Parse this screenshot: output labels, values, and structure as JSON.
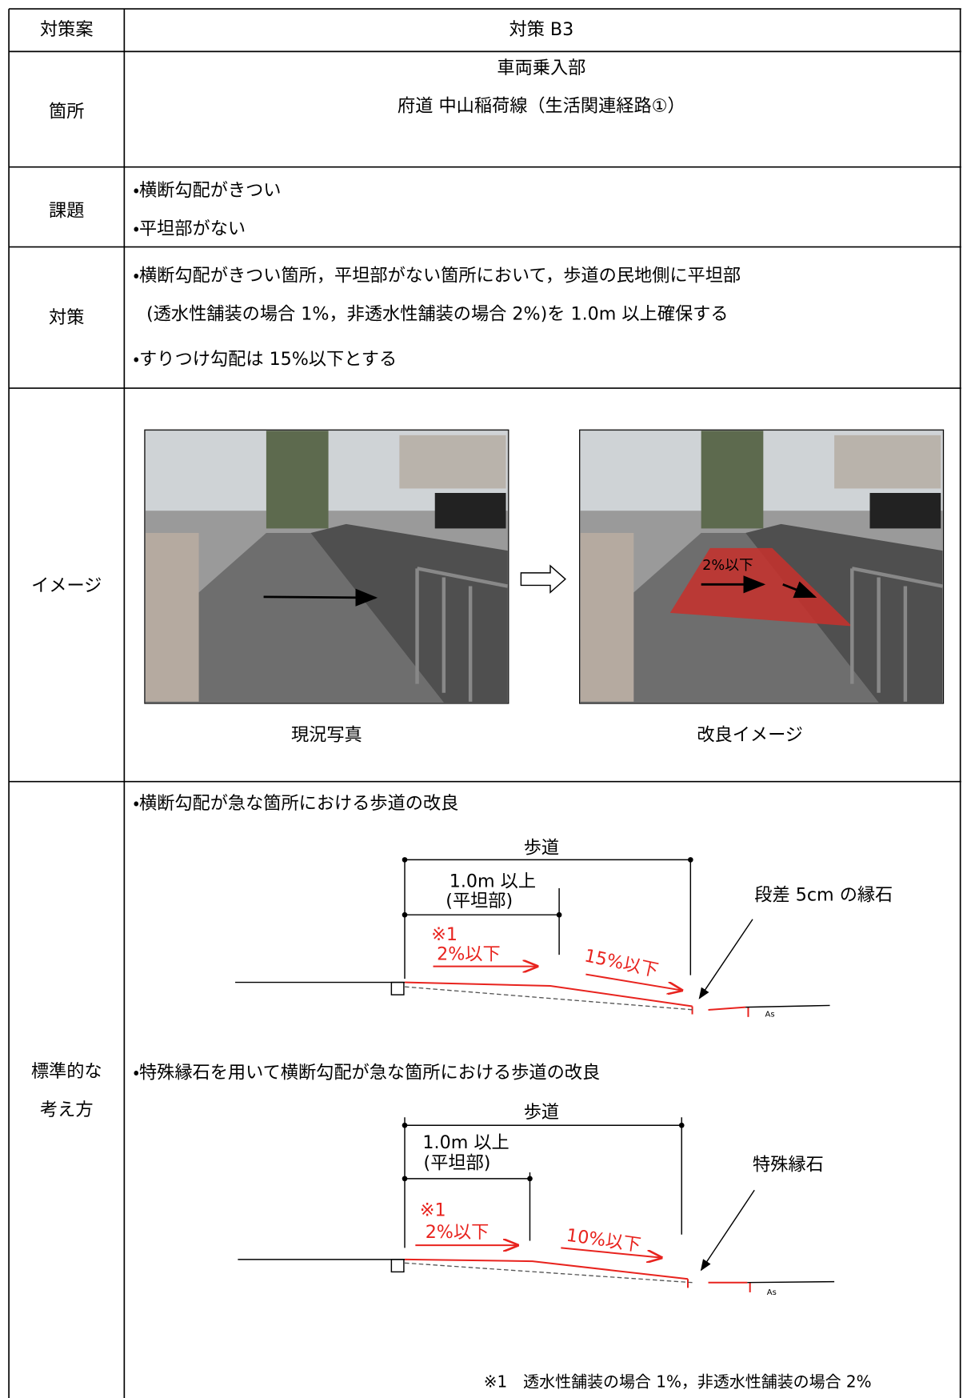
{
  "table": {
    "rows": [
      {
        "label": "対策案",
        "content": [
          "対策 B3"
        ]
      },
      {
        "label": "箇所",
        "content": [
          "車両乗入部",
          "府道 中山稲荷線（生活関連経路①）"
        ]
      },
      {
        "label": "課題",
        "content": [
          "・横断勾配がきつい",
          "・平坦部がない"
        ]
      },
      {
        "label": "対策",
        "content": [
          "・横断勾配がきつい箇所，平坦部がない箇所において，歩道の民地側に平坦部",
          "(透水性舗装の場合 1%，非透水性舗装の場合 2%)を 1.0m 以上確保する",
          "・すりつけ勾配は 15%以下とする"
        ]
      },
      {
        "label": "イメージ",
        "images": [
          {
            "caption": "現況写真"
          },
          {
            "caption": "改良イメージ",
            "annotation": "2%以下"
          }
        ]
      },
      {
        "label": [
          "標準的な",
          "考え方"
        ],
        "diagrams": [
          {
            "heading": "・横断勾配が急な箇所における歩道の改良",
            "sidewalk": "歩道",
            "flat_width": "1.0m 以上",
            "flat_label": "(平坦部)",
            "note_mark": "※1",
            "flat_slope": "2%以下",
            "transition_slope": "15%以下",
            "curb": "段差 5cm の縁石",
            "surface": "As"
          },
          {
            "heading": "・特殊縁石を用いて横断勾配が急な箇所における歩道の改良",
            "sidewalk": "歩道",
            "flat_width": "1.0m 以上",
            "flat_label": "(平坦部)",
            "note_mark": "※1",
            "flat_slope": "2%以下",
            "transition_slope": "10%以下",
            "curb": "特殊縁石",
            "surface": "As"
          }
        ],
        "footnote": "※1　透水性舗装の場合 1%，非透水性舗装の場合 2%"
      }
    ]
  }
}
